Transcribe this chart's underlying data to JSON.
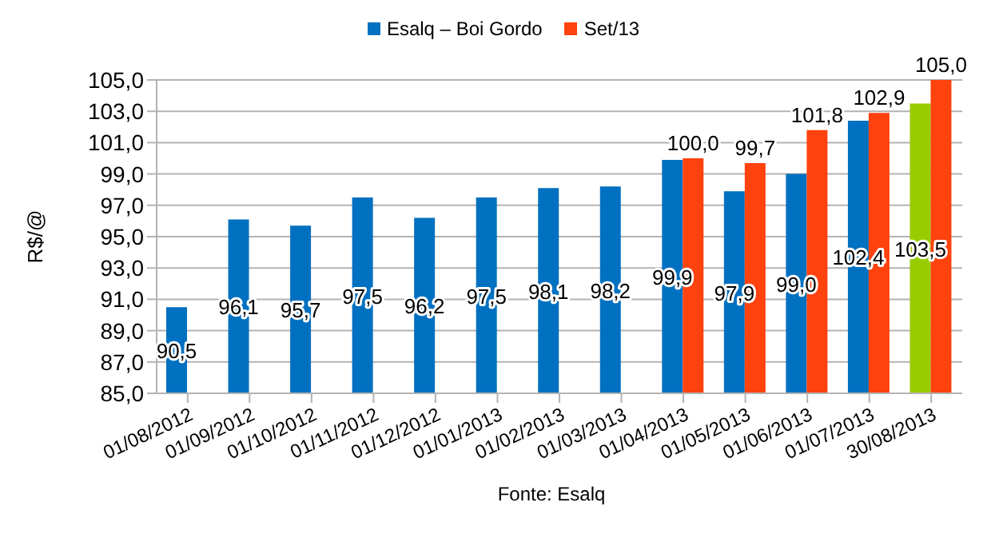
{
  "chart_data": {
    "type": "bar",
    "ylabel": "R$/@",
    "annotations": [
      "Fonte: Esalq"
    ],
    "categories": [
      "01/08/2012",
      "01/09/2012",
      "01/10/2012",
      "01/11/2012",
      "01/12/2012",
      "01/01/2013",
      "01/02/2013",
      "01/03/2013",
      "01/04/2013",
      "01/05/2013",
      "01/06/2013",
      "01/07/2013",
      "30/08/2013"
    ],
    "series": [
      {
        "name": "Esalq – Boi Gordo",
        "color": "#0070c0",
        "colors": [
          "#0070c0",
          "#0070c0",
          "#0070c0",
          "#0070c0",
          "#0070c0",
          "#0070c0",
          "#0070c0",
          "#0070c0",
          "#0070c0",
          "#0070c0",
          "#0070c0",
          "#0070c0",
          "#99cc00"
        ],
        "values": [
          90.5,
          96.1,
          95.7,
          97.5,
          96.2,
          97.5,
          98.1,
          98.2,
          99.9,
          97.9,
          99.0,
          102.4,
          103.5
        ],
        "value_labels": [
          "90,5",
          "96,1",
          "95,7",
          "97,5",
          "96,2",
          "97,5",
          "98,1",
          "98,2",
          "99,9",
          "97,9",
          "99,0",
          "102,4",
          "103,5"
        ]
      },
      {
        "name": "Set/13",
        "color": "#ff420e",
        "values": [
          null,
          null,
          null,
          null,
          null,
          null,
          null,
          null,
          100.0,
          99.7,
          101.8,
          102.9,
          105.0
        ],
        "value_labels": [
          null,
          null,
          null,
          null,
          null,
          null,
          null,
          null,
          "100,0",
          "99,7",
          "101,8",
          "102,9",
          "105,0"
        ]
      }
    ],
    "ylim": [
      85,
      105
    ],
    "yticks": [
      {
        "value": 85,
        "label": "85,0"
      },
      {
        "value": 87,
        "label": "87,0"
      },
      {
        "value": 89,
        "label": "89,0"
      },
      {
        "value": 91,
        "label": "91,0"
      },
      {
        "value": 93,
        "label": "93,0"
      },
      {
        "value": 95,
        "label": "95,0"
      },
      {
        "value": 97,
        "label": "97,0"
      },
      {
        "value": 99,
        "label": "99,0"
      },
      {
        "value": 101,
        "label": "101,0"
      },
      {
        "value": 103,
        "label": "103,0"
      },
      {
        "value": 105,
        "label": "105,0"
      }
    ],
    "grid": "y",
    "legend": "top"
  }
}
